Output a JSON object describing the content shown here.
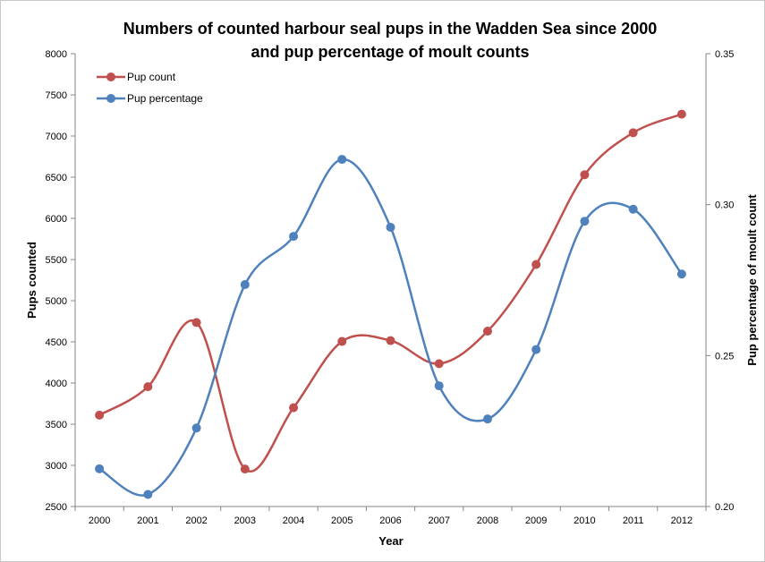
{
  "chart_data": {
    "type": "line",
    "title_lines": [
      "Numbers of counted harbour seal pups in the Wadden Sea since 2000",
      "and pup percentage of moult counts"
    ],
    "xlabel": "Year",
    "ylabel_left": "Pups counted",
    "ylabel_right": "Pup percentage of moult count",
    "categories": [
      "2000",
      "2001",
      "2002",
      "2003",
      "2004",
      "2005",
      "2006",
      "2007",
      "2008",
      "2009",
      "2010",
      "2011",
      "2012"
    ],
    "y_left_ticks": [
      "2500",
      "3000",
      "3500",
      "4000",
      "4500",
      "5000",
      "5500",
      "6000",
      "6500",
      "7000",
      "7500",
      "8000"
    ],
    "y_right_ticks": [
      "0.20",
      "0.25",
      "0.30",
      "0.35"
    ],
    "y_left_range": [
      2500,
      8000
    ],
    "y_right_range": [
      0.2,
      0.35
    ],
    "legend_position": "top-left",
    "smoothed": true,
    "series": [
      {
        "name": "Pup count",
        "axis": "left",
        "color": "#c0504d",
        "values": [
          3610,
          3955,
          4735,
          2955,
          3700,
          4505,
          4515,
          4235,
          4630,
          5440,
          6530,
          7040,
          7265
        ]
      },
      {
        "name": "Pup percentage",
        "axis": "right",
        "color": "#4f81bd",
        "values": [
          0.2125,
          0.204,
          0.226,
          0.2735,
          0.2895,
          0.315,
          0.2925,
          0.24,
          0.229,
          0.252,
          0.2945,
          0.2985,
          0.277
        ]
      }
    ]
  }
}
